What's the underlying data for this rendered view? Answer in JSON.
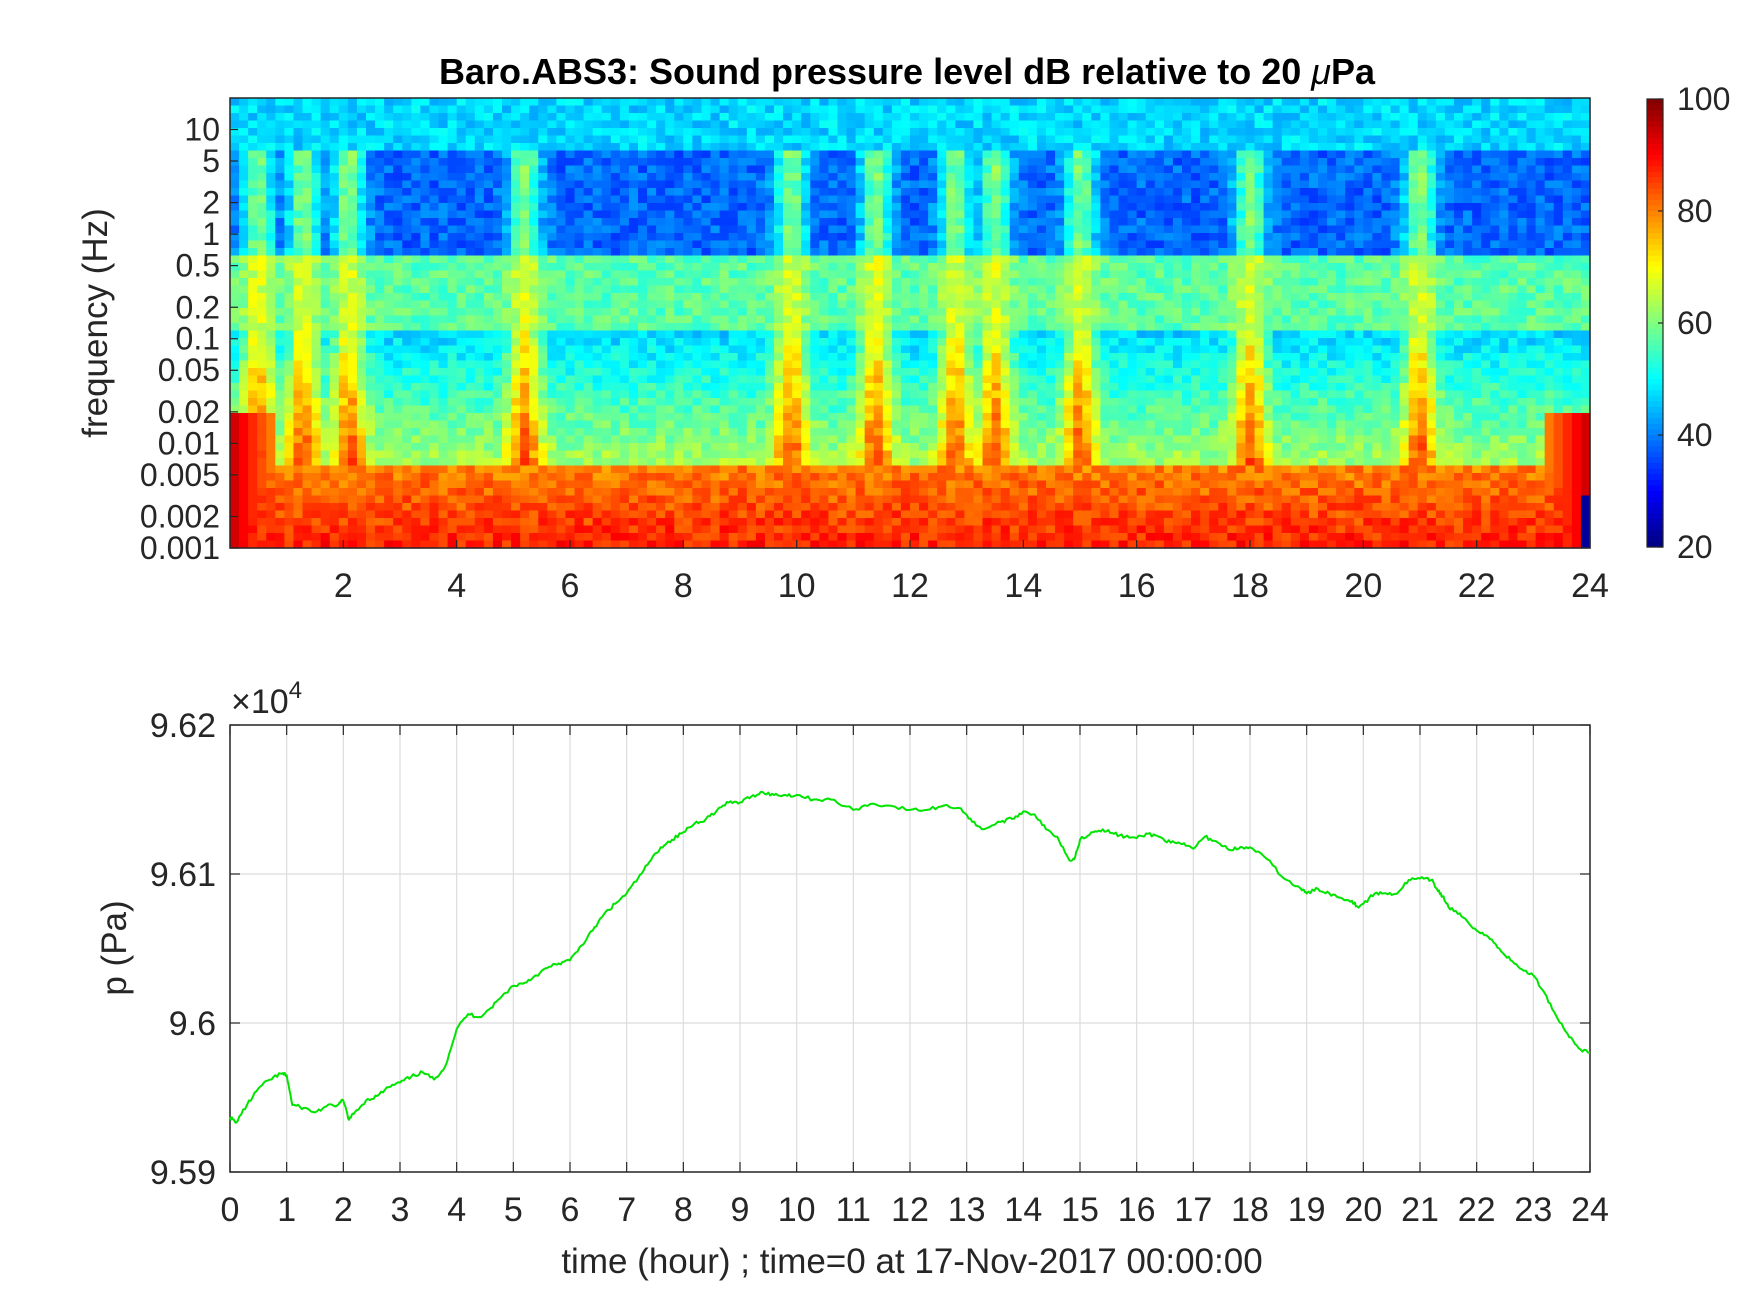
{
  "chart_data": [
    {
      "type": "heatmap",
      "title": "Baro.ABS3: Sound pressure level dB relative to 20 μPa",
      "title_prefix": "Baro.ABS3: Sound pressure level dB relative to 20 ",
      "title_unit_greek": "μ",
      "title_unit": "Pa",
      "ylabel": "frequency (Hz)",
      "yscale": "log",
      "ylim": [
        0.001,
        20
      ],
      "yticks": [
        0.001,
        0.002,
        0.005,
        0.01,
        0.02,
        0.05,
        0.1,
        0.2,
        0.5,
        1,
        2,
        5,
        10
      ],
      "ytick_labels": [
        "0.001",
        "0.002",
        "0.005",
        "0.01",
        "0.02",
        "0.05",
        "0.1",
        "0.2",
        "0.5",
        "1",
        "2",
        "5",
        "10"
      ],
      "xlim": [
        0,
        24
      ],
      "xticks": [
        2,
        4,
        6,
        8,
        10,
        12,
        14,
        16,
        18,
        20,
        22,
        24
      ],
      "xtick_labels": [
        "2",
        "4",
        "6",
        "8",
        "10",
        "12",
        "14",
        "16",
        "18",
        "20",
        "22",
        "24"
      ],
      "colormap": "jet",
      "clim": [
        20,
        100
      ],
      "colorbar_ticks": [
        "20",
        "40",
        "60",
        "80",
        "100"
      ],
      "colorbar_values": [
        20,
        40,
        60,
        80,
        100
      ],
      "events_hours": [
        0.5,
        1.3,
        2.1,
        5.2,
        9.9,
        11.4,
        12.8,
        13.5,
        15.0,
        18.0,
        21.0
      ]
    },
    {
      "type": "line",
      "ylabel": "p (Pa)",
      "xlabel": "time (hour) ; time=0 at 17-Nov-2017 00:00:00",
      "exponent_label": "×10",
      "exponent_power": "4",
      "xlim": [
        0,
        24
      ],
      "ylim": [
        95900,
        96200
      ],
      "xticks": [
        0,
        1,
        2,
        3,
        4,
        5,
        6,
        7,
        8,
        9,
        10,
        11,
        12,
        13,
        14,
        15,
        16,
        17,
        18,
        19,
        20,
        21,
        22,
        23,
        24
      ],
      "xtick_labels": [
        "0",
        "1",
        "2",
        "3",
        "4",
        "5",
        "6",
        "7",
        "8",
        "9",
        "10",
        "11",
        "12",
        "13",
        "14",
        "15",
        "16",
        "17",
        "18",
        "19",
        "20",
        "21",
        "22",
        "23",
        "24"
      ],
      "yticks": [
        95900,
        96000,
        96100,
        96200
      ],
      "ytick_labels": [
        "9.59",
        "9.6",
        "9.61",
        "9.62"
      ],
      "grid": true,
      "series": [
        {
          "color": "#00e400",
          "x": [
            0,
            0.1,
            0.3,
            0.5,
            0.7,
            0.9,
            1.0,
            1.1,
            1.3,
            1.5,
            1.7,
            1.9,
            2.0,
            2.1,
            2.2,
            2.4,
            2.6,
            2.8,
            3.0,
            3.2,
            3.4,
            3.6,
            3.8,
            4.0,
            4.2,
            4.4,
            4.6,
            4.8,
            5.0,
            5.2,
            5.4,
            5.6,
            5.8,
            6.0,
            6.2,
            6.4,
            6.6,
            6.8,
            7.0,
            7.2,
            7.4,
            7.6,
            7.8,
            8.0,
            8.2,
            8.4,
            8.6,
            8.8,
            9.0,
            9.2,
            9.4,
            9.6,
            9.8,
            10.0,
            10.3,
            10.6,
            11.0,
            11.3,
            11.6,
            12.0,
            12.3,
            12.6,
            12.9,
            13.1,
            13.3,
            13.6,
            13.8,
            14.0,
            14.2,
            14.4,
            14.6,
            14.8,
            14.9,
            15.0,
            15.2,
            15.4,
            15.6,
            15.8,
            16.0,
            16.2,
            16.4,
            16.6,
            16.8,
            17.0,
            17.2,
            17.4,
            17.6,
            17.8,
            18.0,
            18.3,
            18.6,
            18.9,
            19.0,
            19.2,
            19.4,
            19.6,
            19.8,
            19.9,
            20.0,
            20.2,
            20.4,
            20.6,
            20.8,
            21.0,
            21.2,
            21.3,
            21.4,
            21.5,
            21.6,
            21.8,
            22.0,
            22.2,
            22.4,
            22.6,
            22.8,
            23.0,
            23.2,
            23.4,
            23.6,
            23.8,
            24.0
          ],
          "y": [
            95937,
            95933,
            95945,
            95956,
            95962,
            95966,
            95965,
            95945,
            95943,
            95940,
            95944,
            95945,
            95948,
            95935,
            95940,
            95948,
            95951,
            95957,
            95960,
            95964,
            95967,
            95962,
            95971,
            95996,
            96006,
            96004,
            96010,
            96018,
            96025,
            96027,
            96032,
            96037,
            96040,
            96042,
            96052,
            96062,
            96073,
            96080,
            96087,
            96097,
            96108,
            96118,
            96123,
            96128,
            96134,
            96137,
            96143,
            96148,
            96148,
            96152,
            96155,
            96153,
            96153,
            96153,
            96150,
            96150,
            96143,
            96147,
            96146,
            96143,
            96143,
            96146,
            96144,
            96135,
            96130,
            96135,
            96137,
            96142,
            96140,
            96130,
            96125,
            96110,
            96110,
            96123,
            96128,
            96130,
            96127,
            96125,
            96124,
            96127,
            96125,
            96121,
            96120,
            96117,
            96125,
            96122,
            96117,
            96117,
            96118,
            96110,
            96097,
            96090,
            96087,
            96090,
            96087,
            96084,
            96082,
            96078,
            96080,
            96087,
            96087,
            96087,
            96096,
            96097,
            96096,
            96090,
            96085,
            96078,
            96075,
            96070,
            96062,
            96058,
            96050,
            96042,
            96036,
            96032,
            96020,
            96005,
            95993,
            95983,
            95980
          ]
        }
      ]
    }
  ]
}
